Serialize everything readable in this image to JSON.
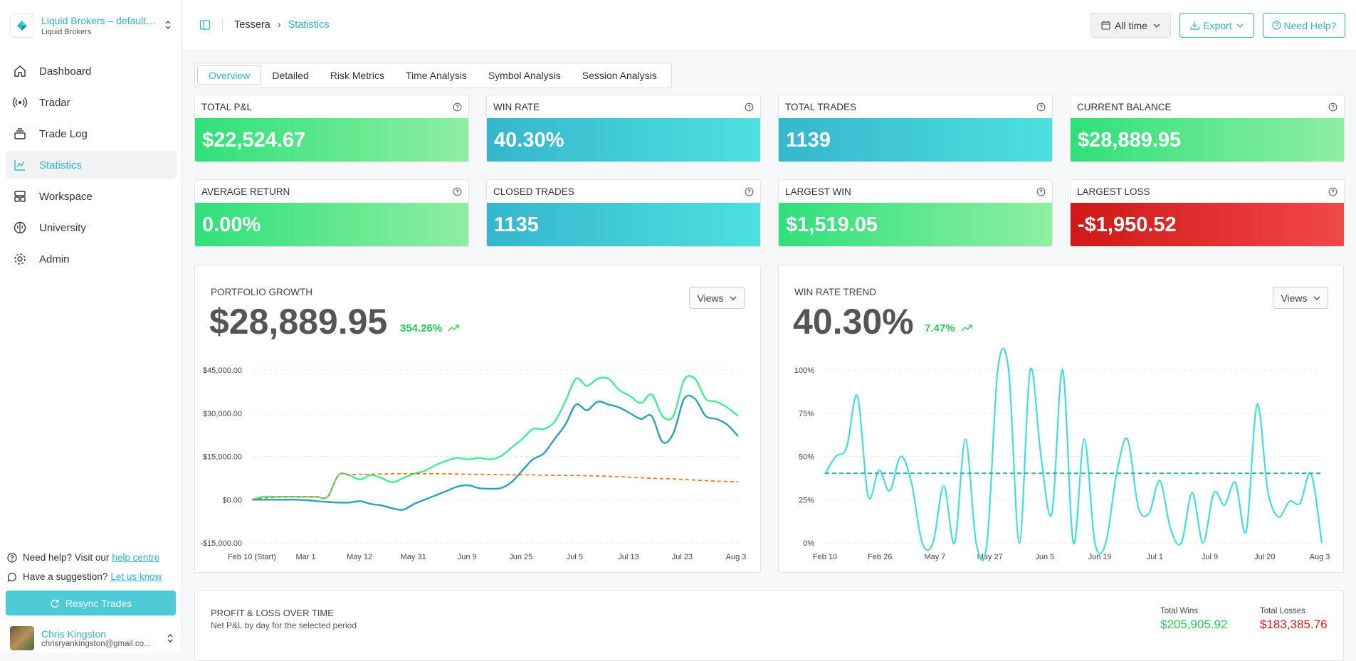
{
  "sidebar": {
    "account_name": "Liquid Brokers – default…",
    "account_sub": "Liquid Brokers",
    "items": [
      {
        "label": "Dashboard",
        "icon": "home-icon"
      },
      {
        "label": "Tradar",
        "icon": "radar-icon"
      },
      {
        "label": "Trade Log",
        "icon": "layers-icon"
      },
      {
        "label": "Statistics",
        "icon": "chart-icon",
        "active": true
      },
      {
        "label": "Workspace",
        "icon": "workspace-icon"
      },
      {
        "label": "University",
        "icon": "brain-icon"
      },
      {
        "label": "Admin",
        "icon": "gear-icon"
      }
    ],
    "help_text": "Need help? Visit our",
    "help_link": "help centre",
    "suggest_text": "Have a suggestion?",
    "suggest_link": "Let us know",
    "resync_label": "Resync Trades",
    "user_name": "Chris Kingston",
    "user_email": "chrisryankingston@gmail.co..."
  },
  "header": {
    "breadcrumb_root": "Tessera",
    "breadcrumb_current": "Statistics",
    "time_range": "All time",
    "export_label": "Export",
    "help_label": "Need Help?"
  },
  "tabs": [
    "Overview",
    "Detailed",
    "Risk Metrics",
    "Time Analysis",
    "Symbol Analysis",
    "Session Analysis"
  ],
  "cards": [
    {
      "label": "TOTAL P&L",
      "value": "$22,524.67",
      "style": "green"
    },
    {
      "label": "WIN RATE",
      "value": "40.30%",
      "style": "teal"
    },
    {
      "label": "TOTAL TRADES",
      "value": "1139",
      "style": "teal"
    },
    {
      "label": "CURRENT BALANCE",
      "value": "$28,889.95",
      "style": "green"
    },
    {
      "label": "AVERAGE RETURN",
      "value": "0.00%",
      "style": "green"
    },
    {
      "label": "CLOSED TRADES",
      "value": "1135",
      "style": "teal"
    },
    {
      "label": "LARGEST WIN",
      "value": "$1,519.05",
      "style": "green"
    },
    {
      "label": "LARGEST LOSS",
      "value": "-$1,950.52",
      "style": "red"
    }
  ],
  "portfolio": {
    "title": "PORTFOLIO GROWTH",
    "value": "$28,889.95",
    "change": "354.26%",
    "views_label": "Views"
  },
  "winrate": {
    "title": "WIN RATE TREND",
    "value": "40.30%",
    "change": "7.47%",
    "views_label": "Views"
  },
  "pnl": {
    "title": "PROFIT & LOSS OVER TIME",
    "subtitle": "Net P&L by day for the selected period",
    "wins_label": "Total Wins",
    "wins_value": "$205,905.92",
    "losses_label": "Total Losses",
    "losses_value": "$183,385.76"
  },
  "colors": {
    "accent": "#2fb5c5",
    "green_line": "#3eef96",
    "blue_line": "#2a9fbe",
    "orange_dash": "#f07a1a",
    "teal_line": "#3fe0d8",
    "teal_dash": "#2ab0c8",
    "win": "#22cc55",
    "loss": "#e01b1b"
  },
  "chart_data": [
    {
      "type": "line",
      "ytick_labels": [
        "$45,000.00",
        "$30,000.00",
        "$15,000.00",
        "$0.00",
        "-$15,000.00"
      ],
      "yticks": [
        45000,
        30000,
        15000,
        0,
        -15000
      ],
      "ylim": [
        -15000,
        45000
      ],
      "xtick_labels": [
        "Feb 10 (Start)",
        "Mar 1",
        "May 12",
        "May 31",
        "Jun 9",
        "Jun 25",
        "Jul 5",
        "Jul 13",
        "Jul 23",
        "Aug 3"
      ],
      "series": [
        {
          "values": [
            0,
            1000,
            1000,
            1000,
            1000,
            1000,
            1000,
            1000,
            8500,
            8500,
            7000,
            8500,
            7500,
            6000,
            7500,
            9000,
            10000,
            12000,
            13500,
            14500,
            14000,
            14500,
            14000,
            15000,
            18000,
            21000,
            24500,
            24500,
            27000,
            34000,
            42000,
            39500,
            42000,
            42000,
            38000,
            36000,
            33500,
            36500,
            29000,
            29000,
            41500,
            42000,
            35000,
            34000,
            32000,
            29000
          ]
        },
        {
          "values": [
            0,
            0,
            0,
            0,
            0,
            -200,
            -500,
            -800,
            -1000,
            -1000,
            -500,
            -1500,
            -2000,
            -3000,
            -3500,
            -1500,
            0,
            1500,
            3000,
            4500,
            5000,
            4000,
            3800,
            4000,
            6000,
            10000,
            14000,
            16000,
            21000,
            26000,
            33000,
            31000,
            34000,
            33000,
            32000,
            30000,
            28000,
            29000,
            20000,
            23000,
            35000,
            35000,
            29000,
            28000,
            26000,
            22000
          ]
        },
        {
          "values": [
            0,
            500,
            800,
            1000,
            1000,
            1000,
            1000,
            1000,
            8500,
            8700,
            8800,
            8800,
            8900,
            9000,
            9000,
            9000,
            9000,
            9000,
            9000,
            8900,
            8800,
            8800,
            8700,
            8700,
            8600,
            8600,
            8600,
            8500,
            8500,
            8400,
            8400,
            8300,
            8200,
            8100,
            8000,
            7800,
            7600,
            7400,
            7300,
            7200,
            7000,
            6800,
            6600,
            6400,
            6300,
            6200
          ]
        }
      ]
    },
    {
      "type": "line",
      "ytick_labels": [
        "100%",
        "75%",
        "50%",
        "25%",
        "0%"
      ],
      "yticks": [
        100,
        75,
        50,
        25,
        0
      ],
      "ylim": [
        0,
        100
      ],
      "xtick_labels": [
        "Feb 10",
        "Feb 26",
        "May 7",
        "May 27",
        "Jun 5",
        "Jun 19",
        "Jul 1",
        "Jul 9",
        "Jul 20",
        "Aug 3"
      ],
      "series": [
        {
          "values": [
            40,
            50,
            55,
            85,
            27,
            42,
            30,
            50,
            35,
            0,
            0,
            33,
            0,
            60,
            0,
            0,
            100,
            100,
            0,
            100,
            50,
            17,
            100,
            0,
            60,
            0,
            0,
            40,
            60,
            21,
            17,
            36,
            8,
            0,
            29,
            0,
            29,
            22,
            35,
            7,
            80,
            30,
            15,
            24,
            23,
            40,
            0
          ]
        },
        {
          "values": [
            40.3,
            40.3
          ]
        }
      ]
    }
  ]
}
